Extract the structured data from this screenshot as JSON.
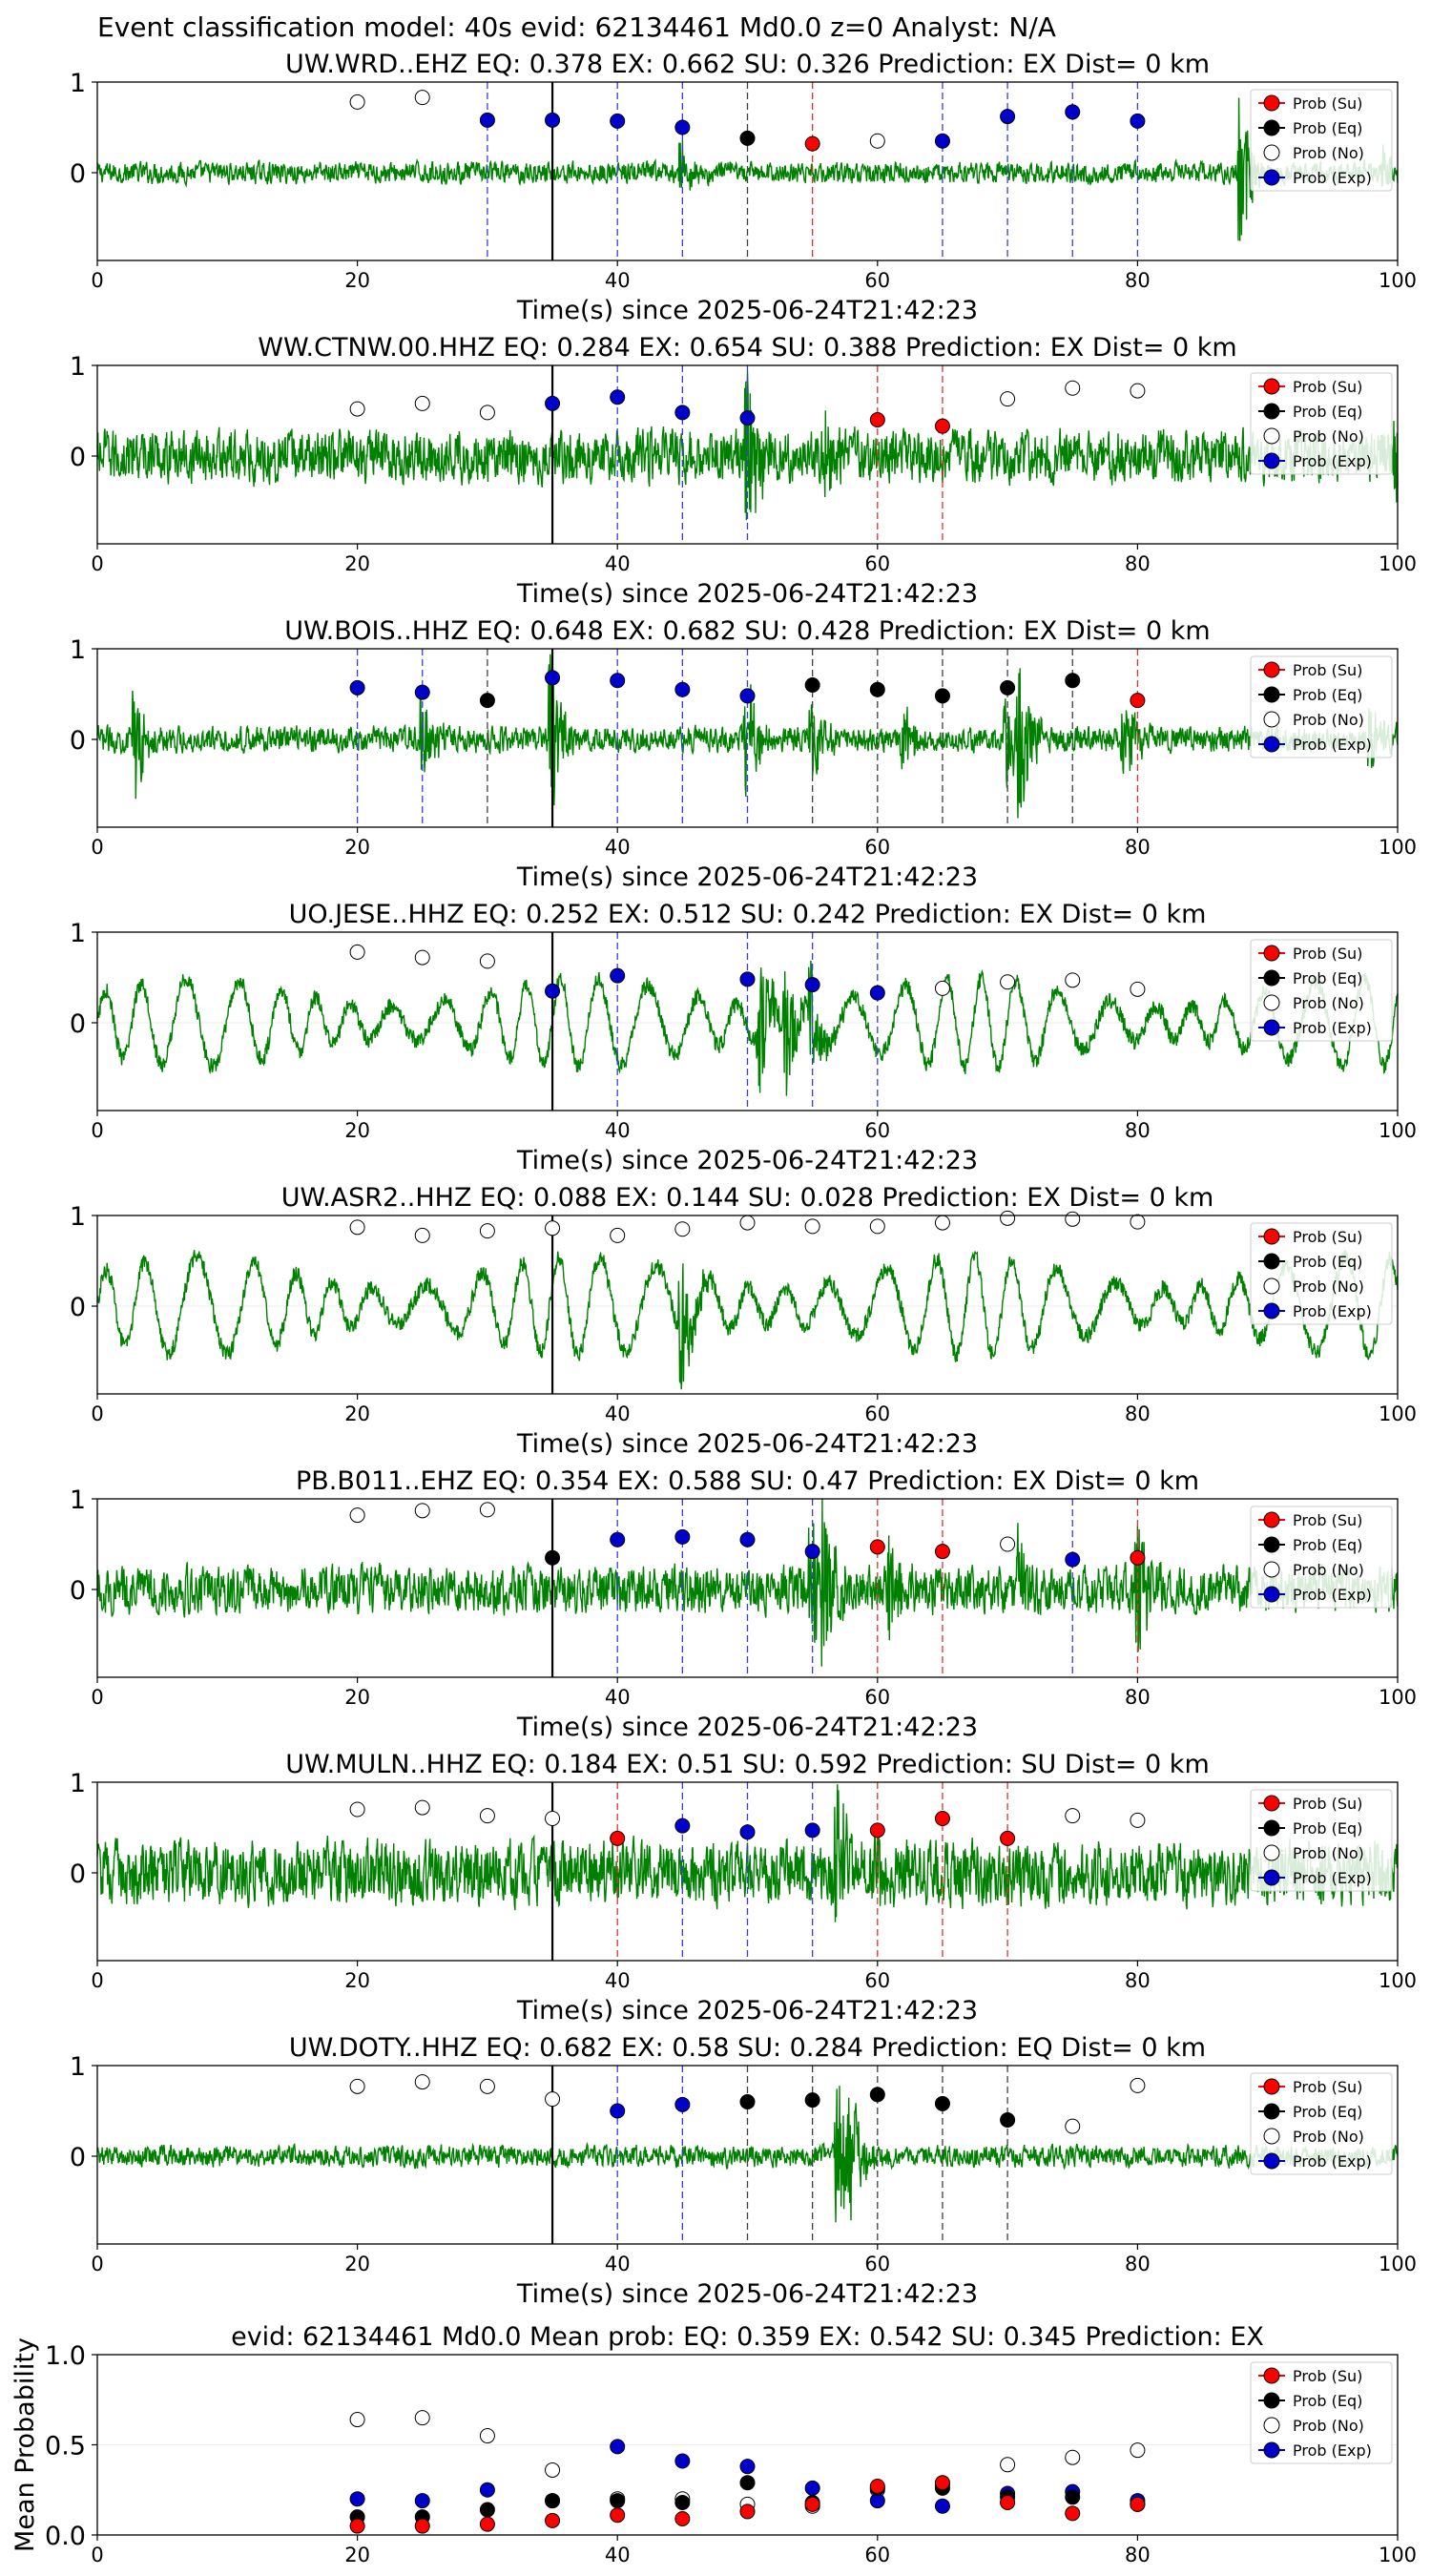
{
  "figure_title": "Event classification model: 40s evid: 62134461 Md0.0 z=0 Analyst: N/A",
  "legend_labels": [
    "Prob (Su)",
    "Prob (Eq)",
    "Prob (No)",
    "Prob (Exp)"
  ],
  "colors": {
    "su": "#ff0000",
    "eq": "#000000",
    "no": "#ffffff",
    "exp": "#0000cc",
    "waveform": "#008000",
    "origin_line": "#000000"
  },
  "chart_data": [
    {
      "type": "line",
      "title": "UW.WRD..EHZ   EQ: 0.378  EX: 0.662  SU: 0.326   Prediction: EX    Dist= 0 km",
      "xlabel": "Time(s) since 2025-06-24T21:42:23",
      "xlim": [
        0,
        100
      ],
      "ylim": [
        -1,
        1
      ],
      "xticks": [
        "0",
        "20",
        "40",
        "60",
        "80",
        "100"
      ],
      "yticks": [
        "0",
        "1"
      ],
      "origin_time": 35,
      "waveform": {
        "style": "noise",
        "amplitude": 0.1,
        "events": [
          [
            45,
            0.3
          ],
          [
            88,
            0.9
          ],
          [
            99,
            0.3
          ]
        ]
      },
      "points": [
        {
          "t": 20,
          "cls": "no",
          "p": 0.78
        },
        {
          "t": 25,
          "cls": "no",
          "p": 0.83
        },
        {
          "t": 30,
          "cls": "exp",
          "p": 0.58
        },
        {
          "t": 35,
          "cls": "exp",
          "p": 0.58
        },
        {
          "t": 40,
          "cls": "exp",
          "p": 0.57
        },
        {
          "t": 45,
          "cls": "exp",
          "p": 0.5
        },
        {
          "t": 50,
          "cls": "eq",
          "p": 0.38
        },
        {
          "t": 55,
          "cls": "su",
          "p": 0.32
        },
        {
          "t": 60,
          "cls": "no",
          "p": 0.35
        },
        {
          "t": 65,
          "cls": "exp",
          "p": 0.35
        },
        {
          "t": 70,
          "cls": "exp",
          "p": 0.62
        },
        {
          "t": 75,
          "cls": "exp",
          "p": 0.67
        },
        {
          "t": 80,
          "cls": "exp",
          "p": 0.57
        }
      ]
    },
    {
      "type": "line",
      "title": "WW.CTNW.00.HHZ   EQ: 0.284  EX: 0.654  SU: 0.388   Prediction: EX    Dist= 0 km",
      "xlabel": "Time(s) since 2025-06-24T21:42:23",
      "xlim": [
        0,
        100
      ],
      "ylim": [
        -1,
        1
      ],
      "xticks": [
        "0",
        "20",
        "40",
        "60",
        "80",
        "100"
      ],
      "yticks": [
        "0",
        "1"
      ],
      "origin_time": 35,
      "waveform": {
        "style": "noise",
        "amplitude": 0.25,
        "events": [
          [
            50,
            0.9
          ],
          [
            56,
            0.4
          ],
          [
            100,
            0.5
          ]
        ]
      },
      "points": [
        {
          "t": 20,
          "cls": "no",
          "p": 0.52
        },
        {
          "t": 25,
          "cls": "no",
          "p": 0.58
        },
        {
          "t": 30,
          "cls": "no",
          "p": 0.48
        },
        {
          "t": 35,
          "cls": "exp",
          "p": 0.58
        },
        {
          "t": 40,
          "cls": "exp",
          "p": 0.65
        },
        {
          "t": 45,
          "cls": "exp",
          "p": 0.48
        },
        {
          "t": 50,
          "cls": "exp",
          "p": 0.42
        },
        {
          "t": 60,
          "cls": "su",
          "p": 0.4
        },
        {
          "t": 65,
          "cls": "su",
          "p": 0.33
        },
        {
          "t": 70,
          "cls": "no",
          "p": 0.63
        },
        {
          "t": 75,
          "cls": "no",
          "p": 0.75
        },
        {
          "t": 80,
          "cls": "no",
          "p": 0.72
        }
      ]
    },
    {
      "type": "line",
      "title": "UW.BOIS..HHZ   EQ: 0.648  EX: 0.682  SU: 0.428   Prediction: EX    Dist= 0 km",
      "xlabel": "Time(s) since 2025-06-24T21:42:23",
      "xlim": [
        0,
        100
      ],
      "ylim": [
        -1,
        1
      ],
      "xticks": [
        "0",
        "20",
        "40",
        "60",
        "80",
        "100"
      ],
      "yticks": [
        "0",
        "1"
      ],
      "origin_time": 35,
      "waveform": {
        "style": "noise",
        "amplitude": 0.12,
        "events": [
          [
            3,
            0.6
          ],
          [
            25,
            0.5
          ],
          [
            35,
            0.9
          ],
          [
            50,
            0.7
          ],
          [
            55,
            0.4
          ],
          [
            62,
            0.4
          ],
          [
            70,
            0.6
          ],
          [
            71,
            0.9
          ],
          [
            79,
            0.5
          ],
          [
            98,
            0.4
          ]
        ]
      },
      "points": [
        {
          "t": 20,
          "cls": "exp",
          "p": 0.57
        },
        {
          "t": 25,
          "cls": "exp",
          "p": 0.52
        },
        {
          "t": 30,
          "cls": "eq",
          "p": 0.43
        },
        {
          "t": 35,
          "cls": "exp",
          "p": 0.68
        },
        {
          "t": 40,
          "cls": "exp",
          "p": 0.65
        },
        {
          "t": 45,
          "cls": "exp",
          "p": 0.55
        },
        {
          "t": 50,
          "cls": "exp",
          "p": 0.48
        },
        {
          "t": 55,
          "cls": "eq",
          "p": 0.6
        },
        {
          "t": 60,
          "cls": "eq",
          "p": 0.55
        },
        {
          "t": 65,
          "cls": "eq",
          "p": 0.48
        },
        {
          "t": 70,
          "cls": "eq",
          "p": 0.57
        },
        {
          "t": 75,
          "cls": "eq",
          "p": 0.65
        },
        {
          "t": 80,
          "cls": "su",
          "p": 0.43
        }
      ]
    },
    {
      "type": "line",
      "title": "UO.JESE..HHZ   EQ: 0.252  EX: 0.512  SU: 0.242   Prediction: EX    Dist= 0 km",
      "xlabel": "Time(s) since 2025-06-24T21:42:23",
      "xlim": [
        0,
        100
      ],
      "ylim": [
        -1,
        1
      ],
      "xticks": [
        "0",
        "20",
        "40",
        "60",
        "80",
        "100"
      ],
      "yticks": [
        "0",
        "1"
      ],
      "origin_time": 35,
      "waveform": {
        "style": "oscillation",
        "amplitude": 0.45,
        "period": 3.2,
        "events": [
          [
            51,
            0.9
          ],
          [
            53,
            0.8
          ],
          [
            55,
            0.6
          ]
        ]
      },
      "points": [
        {
          "t": 20,
          "cls": "no",
          "p": 0.78
        },
        {
          "t": 25,
          "cls": "no",
          "p": 0.72
        },
        {
          "t": 30,
          "cls": "no",
          "p": 0.68
        },
        {
          "t": 35,
          "cls": "exp",
          "p": 0.35
        },
        {
          "t": 40,
          "cls": "exp",
          "p": 0.52
        },
        {
          "t": 50,
          "cls": "exp",
          "p": 0.48
        },
        {
          "t": 55,
          "cls": "exp",
          "p": 0.42
        },
        {
          "t": 60,
          "cls": "exp",
          "p": 0.33
        },
        {
          "t": 65,
          "cls": "no",
          "p": 0.38
        },
        {
          "t": 70,
          "cls": "no",
          "p": 0.45
        },
        {
          "t": 75,
          "cls": "no",
          "p": 0.47
        },
        {
          "t": 80,
          "cls": "no",
          "p": 0.37
        }
      ]
    },
    {
      "type": "line",
      "title": "UW.ASR2..HHZ   EQ: 0.088  EX: 0.144  SU: 0.028   Prediction: EX    Dist= 0 km",
      "xlabel": "Time(s) since 2025-06-24T21:42:23",
      "xlim": [
        0,
        100
      ],
      "ylim": [
        -1,
        1
      ],
      "xticks": [
        "0",
        "20",
        "40",
        "60",
        "80",
        "100"
      ],
      "yticks": [
        "0",
        "1"
      ],
      "origin_time": 35,
      "waveform": {
        "style": "oscillation",
        "amplitude": 0.5,
        "period": 3.5,
        "events": [
          [
            45,
            0.9
          ]
        ]
      },
      "points": [
        {
          "t": 20,
          "cls": "no",
          "p": 0.87
        },
        {
          "t": 25,
          "cls": "no",
          "p": 0.78
        },
        {
          "t": 30,
          "cls": "no",
          "p": 0.83
        },
        {
          "t": 35,
          "cls": "no",
          "p": 0.86
        },
        {
          "t": 40,
          "cls": "no",
          "p": 0.78
        },
        {
          "t": 45,
          "cls": "no",
          "p": 0.85
        },
        {
          "t": 50,
          "cls": "no",
          "p": 0.92
        },
        {
          "t": 55,
          "cls": "no",
          "p": 0.88
        },
        {
          "t": 60,
          "cls": "no",
          "p": 0.88
        },
        {
          "t": 65,
          "cls": "no",
          "p": 0.92
        },
        {
          "t": 70,
          "cls": "no",
          "p": 0.97
        },
        {
          "t": 75,
          "cls": "no",
          "p": 0.96
        },
        {
          "t": 80,
          "cls": "no",
          "p": 0.93
        }
      ]
    },
    {
      "type": "line",
      "title": "PB.B011..EHZ   EQ: 0.354  EX: 0.588  SU: 0.47   Prediction: EX    Dist= 0 km",
      "xlabel": "Time(s) since 2025-06-24T21:42:23",
      "xlim": [
        0,
        100
      ],
      "ylim": [
        -1,
        1
      ],
      "xticks": [
        "0",
        "20",
        "40",
        "60",
        "80",
        "100"
      ],
      "yticks": [
        "0",
        "1"
      ],
      "origin_time": 35,
      "waveform": {
        "style": "noise",
        "amplitude": 0.22,
        "events": [
          [
            55,
            0.7
          ],
          [
            56,
            0.9
          ],
          [
            61,
            0.5
          ],
          [
            71,
            0.5
          ],
          [
            80,
            0.8
          ]
        ]
      },
      "points": [
        {
          "t": 20,
          "cls": "no",
          "p": 0.82
        },
        {
          "t": 25,
          "cls": "no",
          "p": 0.87
        },
        {
          "t": 30,
          "cls": "no",
          "p": 0.88
        },
        {
          "t": 35,
          "cls": "eq",
          "p": 0.35
        },
        {
          "t": 40,
          "cls": "exp",
          "p": 0.55
        },
        {
          "t": 45,
          "cls": "exp",
          "p": 0.58
        },
        {
          "t": 50,
          "cls": "exp",
          "p": 0.55
        },
        {
          "t": 55,
          "cls": "exp",
          "p": 0.42
        },
        {
          "t": 60,
          "cls": "su",
          "p": 0.47
        },
        {
          "t": 65,
          "cls": "su",
          "p": 0.42
        },
        {
          "t": 70,
          "cls": "no",
          "p": 0.5
        },
        {
          "t": 75,
          "cls": "exp",
          "p": 0.33
        },
        {
          "t": 80,
          "cls": "su",
          "p": 0.35
        }
      ]
    },
    {
      "type": "line",
      "title": "UW.MULN..HHZ   EQ: 0.184  EX: 0.51  SU: 0.592   Prediction: SU    Dist= 0 km",
      "xlabel": "Time(s) since 2025-06-24T21:42:23",
      "xlim": [
        0,
        100
      ],
      "ylim": [
        -1,
        1
      ],
      "xticks": [
        "0",
        "20",
        "40",
        "60",
        "80",
        "100"
      ],
      "yticks": [
        "0",
        "1"
      ],
      "origin_time": 35,
      "waveform": {
        "style": "noise",
        "amplitude": 0.3,
        "events": [
          [
            57,
            0.9
          ],
          [
            60,
            0.5
          ]
        ]
      },
      "points": [
        {
          "t": 20,
          "cls": "no",
          "p": 0.7
        },
        {
          "t": 25,
          "cls": "no",
          "p": 0.72
        },
        {
          "t": 30,
          "cls": "no",
          "p": 0.63
        },
        {
          "t": 35,
          "cls": "no",
          "p": 0.6
        },
        {
          "t": 40,
          "cls": "su",
          "p": 0.38
        },
        {
          "t": 45,
          "cls": "exp",
          "p": 0.52
        },
        {
          "t": 50,
          "cls": "exp",
          "p": 0.45
        },
        {
          "t": 55,
          "cls": "exp",
          "p": 0.47
        },
        {
          "t": 60,
          "cls": "su",
          "p": 0.47
        },
        {
          "t": 65,
          "cls": "su",
          "p": 0.6
        },
        {
          "t": 70,
          "cls": "su",
          "p": 0.38
        },
        {
          "t": 75,
          "cls": "no",
          "p": 0.63
        },
        {
          "t": 80,
          "cls": "no",
          "p": 0.58
        }
      ]
    },
    {
      "type": "line",
      "title": "UW.DOTY..HHZ   EQ: 0.682  EX: 0.58  SU: 0.284   Prediction: EQ    Dist= 0 km",
      "xlabel": "Time(s) since 2025-06-24T21:42:23",
      "xlim": [
        0,
        100
      ],
      "ylim": [
        -1,
        1
      ],
      "xticks": [
        "0",
        "20",
        "40",
        "60",
        "80",
        "100"
      ],
      "yticks": [
        "0",
        "1"
      ],
      "origin_time": 35,
      "waveform": {
        "style": "noise",
        "amplitude": 0.1,
        "events": [
          [
            57,
            0.9
          ],
          [
            58,
            0.6
          ]
        ]
      },
      "points": [
        {
          "t": 20,
          "cls": "no",
          "p": 0.77
        },
        {
          "t": 25,
          "cls": "no",
          "p": 0.82
        },
        {
          "t": 30,
          "cls": "no",
          "p": 0.77
        },
        {
          "t": 35,
          "cls": "no",
          "p": 0.63
        },
        {
          "t": 40,
          "cls": "exp",
          "p": 0.5
        },
        {
          "t": 45,
          "cls": "exp",
          "p": 0.57
        },
        {
          "t": 50,
          "cls": "eq",
          "p": 0.6
        },
        {
          "t": 55,
          "cls": "eq",
          "p": 0.62
        },
        {
          "t": 60,
          "cls": "eq",
          "p": 0.68
        },
        {
          "t": 65,
          "cls": "eq",
          "p": 0.58
        },
        {
          "t": 70,
          "cls": "eq",
          "p": 0.4
        },
        {
          "t": 75,
          "cls": "no",
          "p": 0.33
        },
        {
          "t": 80,
          "cls": "no",
          "p": 0.78
        }
      ]
    },
    {
      "type": "scatter",
      "title": "evid: 62134461  Md0.0   Mean prob:    EQ: 0.359  EX: 0.542  SU: 0.345   Prediction: EX",
      "ylabel": "Mean Probability",
      "xlim": [
        0,
        100
      ],
      "ylim": [
        0,
        1
      ],
      "xticks": [
        "0",
        "20",
        "40",
        "60",
        "80",
        "100"
      ],
      "yticks": [
        "0.0",
        "0.5",
        "1.0"
      ],
      "x": [
        20,
        25,
        30,
        35,
        40,
        45,
        50,
        55,
        60,
        65,
        70,
        75,
        80
      ],
      "series": [
        {
          "cls": "no",
          "values": [
            0.64,
            0.65,
            0.55,
            0.36,
            0.2,
            0.2,
            0.17,
            0.16,
            0.25,
            0.28,
            0.39,
            0.43,
            0.47
          ]
        },
        {
          "cls": "exp",
          "values": [
            0.2,
            0.19,
            0.25,
            0.19,
            0.49,
            0.41,
            0.38,
            0.26,
            0.19,
            0.16,
            0.23,
            0.24,
            0.19
          ]
        },
        {
          "cls": "eq",
          "values": [
            0.1,
            0.1,
            0.14,
            0.19,
            0.19,
            0.18,
            0.29,
            0.18,
            0.26,
            0.26,
            0.21,
            0.21,
            0.17
          ]
        },
        {
          "cls": "su",
          "values": [
            0.05,
            0.05,
            0.06,
            0.08,
            0.11,
            0.09,
            0.13,
            0.17,
            0.27,
            0.29,
            0.18,
            0.12,
            0.17
          ]
        }
      ]
    }
  ]
}
